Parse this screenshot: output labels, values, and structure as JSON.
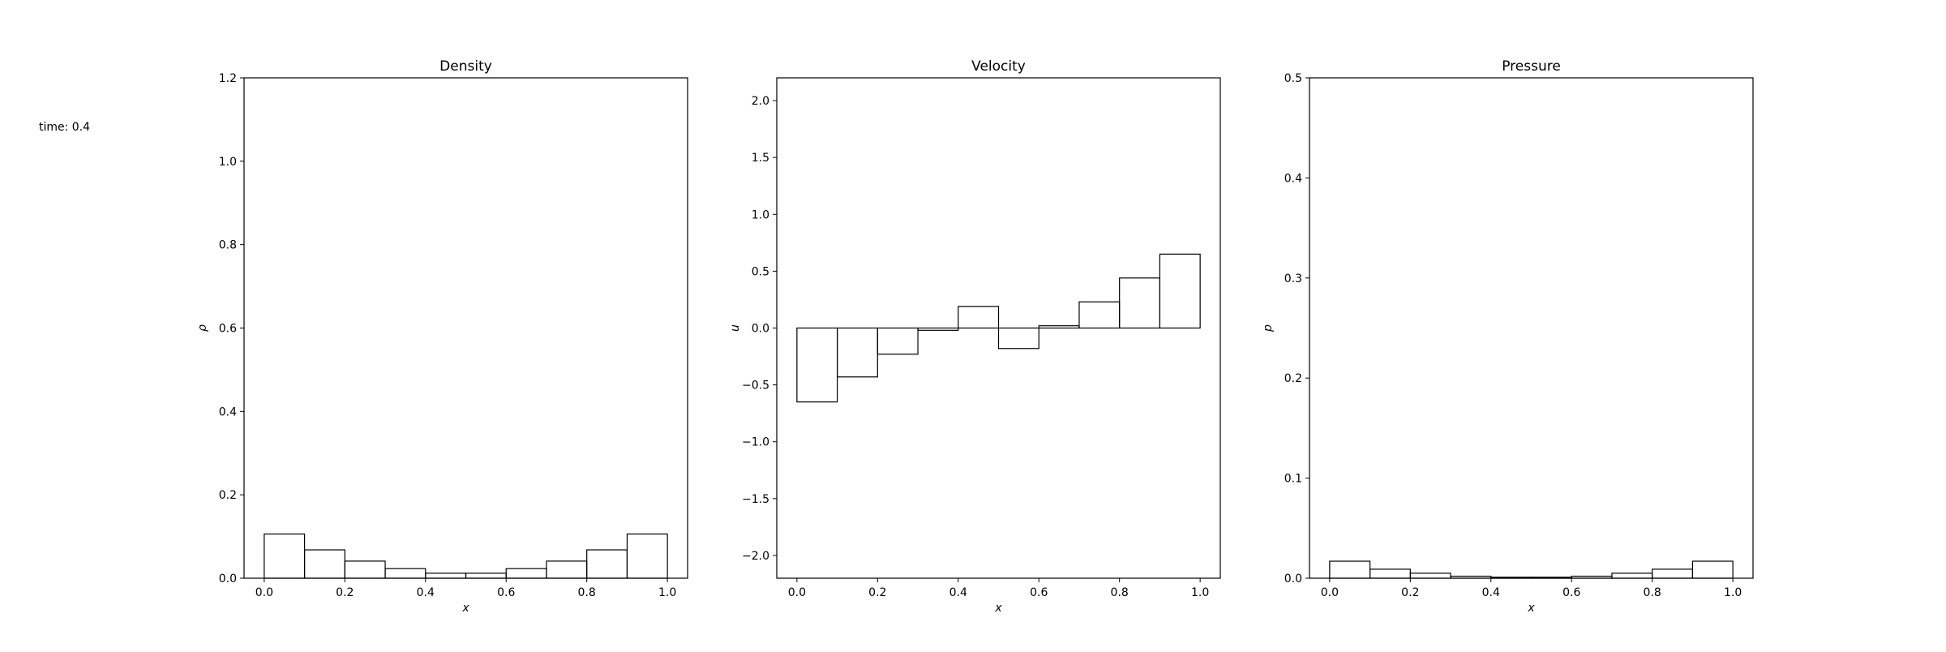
{
  "annotation": "time: 0.4",
  "chart_data": [
    {
      "type": "bar",
      "title": "Density",
      "xlabel": "x",
      "ylabel": "ρ",
      "xlim": [
        -0.05,
        1.05
      ],
      "ylim": [
        0,
        1.2
      ],
      "xticks": [
        0.0,
        0.2,
        0.4,
        0.6,
        0.8,
        1.0
      ],
      "xtick_labels": [
        "0.0",
        "0.2",
        "0.4",
        "0.6",
        "0.8",
        "1.0"
      ],
      "yticks": [
        0.0,
        0.2,
        0.4,
        0.6,
        0.8,
        1.0,
        1.2
      ],
      "ytick_labels": [
        "0.0",
        "0.2",
        "0.4",
        "0.6",
        "0.8",
        "1.0",
        "1.2"
      ],
      "bin_edges": [
        0.0,
        0.1,
        0.2,
        0.3,
        0.4,
        0.5,
        0.6,
        0.7,
        0.8,
        0.9,
        1.0
      ],
      "values": [
        0.106,
        0.068,
        0.041,
        0.023,
        0.012,
        0.012,
        0.023,
        0.041,
        0.068,
        0.106
      ]
    },
    {
      "type": "bar",
      "title": "Velocity",
      "xlabel": "x",
      "ylabel": "u",
      "xlim": [
        -0.05,
        1.05
      ],
      "ylim": [
        -2.2,
        2.2
      ],
      "xticks": [
        0.0,
        0.2,
        0.4,
        0.6,
        0.8,
        1.0
      ],
      "xtick_labels": [
        "0.0",
        "0.2",
        "0.4",
        "0.6",
        "0.8",
        "1.0"
      ],
      "yticks": [
        -2.0,
        -1.5,
        -1.0,
        -0.5,
        0.0,
        0.5,
        1.0,
        1.5,
        2.0
      ],
      "ytick_labels": [
        "−2.0",
        "−1.5",
        "−1.0",
        "−0.5",
        "0.0",
        "0.5",
        "1.0",
        "1.5",
        "2.0"
      ],
      "bin_edges": [
        0.0,
        0.1,
        0.2,
        0.3,
        0.4,
        0.5,
        0.6,
        0.7,
        0.8,
        0.9,
        1.0
      ],
      "values": [
        -0.65,
        -0.43,
        -0.23,
        -0.02,
        0.19,
        -0.18,
        0.02,
        0.23,
        0.44,
        0.65
      ]
    },
    {
      "type": "bar",
      "title": "Pressure",
      "xlabel": "x",
      "ylabel": "p",
      "xlim": [
        -0.05,
        1.05
      ],
      "ylim": [
        0,
        0.5
      ],
      "xticks": [
        0.0,
        0.2,
        0.4,
        0.6,
        0.8,
        1.0
      ],
      "xtick_labels": [
        "0.0",
        "0.2",
        "0.4",
        "0.6",
        "0.8",
        "1.0"
      ],
      "yticks": [
        0.0,
        0.1,
        0.2,
        0.3,
        0.4,
        0.5
      ],
      "ytick_labels": [
        "0.0",
        "0.1",
        "0.2",
        "0.3",
        "0.4",
        "0.5"
      ],
      "bin_edges": [
        0.0,
        0.1,
        0.2,
        0.3,
        0.4,
        0.5,
        0.6,
        0.7,
        0.8,
        0.9,
        1.0
      ],
      "values": [
        0.017,
        0.009,
        0.005,
        0.002,
        0.001,
        0.001,
        0.002,
        0.005,
        0.009,
        0.017
      ]
    }
  ]
}
